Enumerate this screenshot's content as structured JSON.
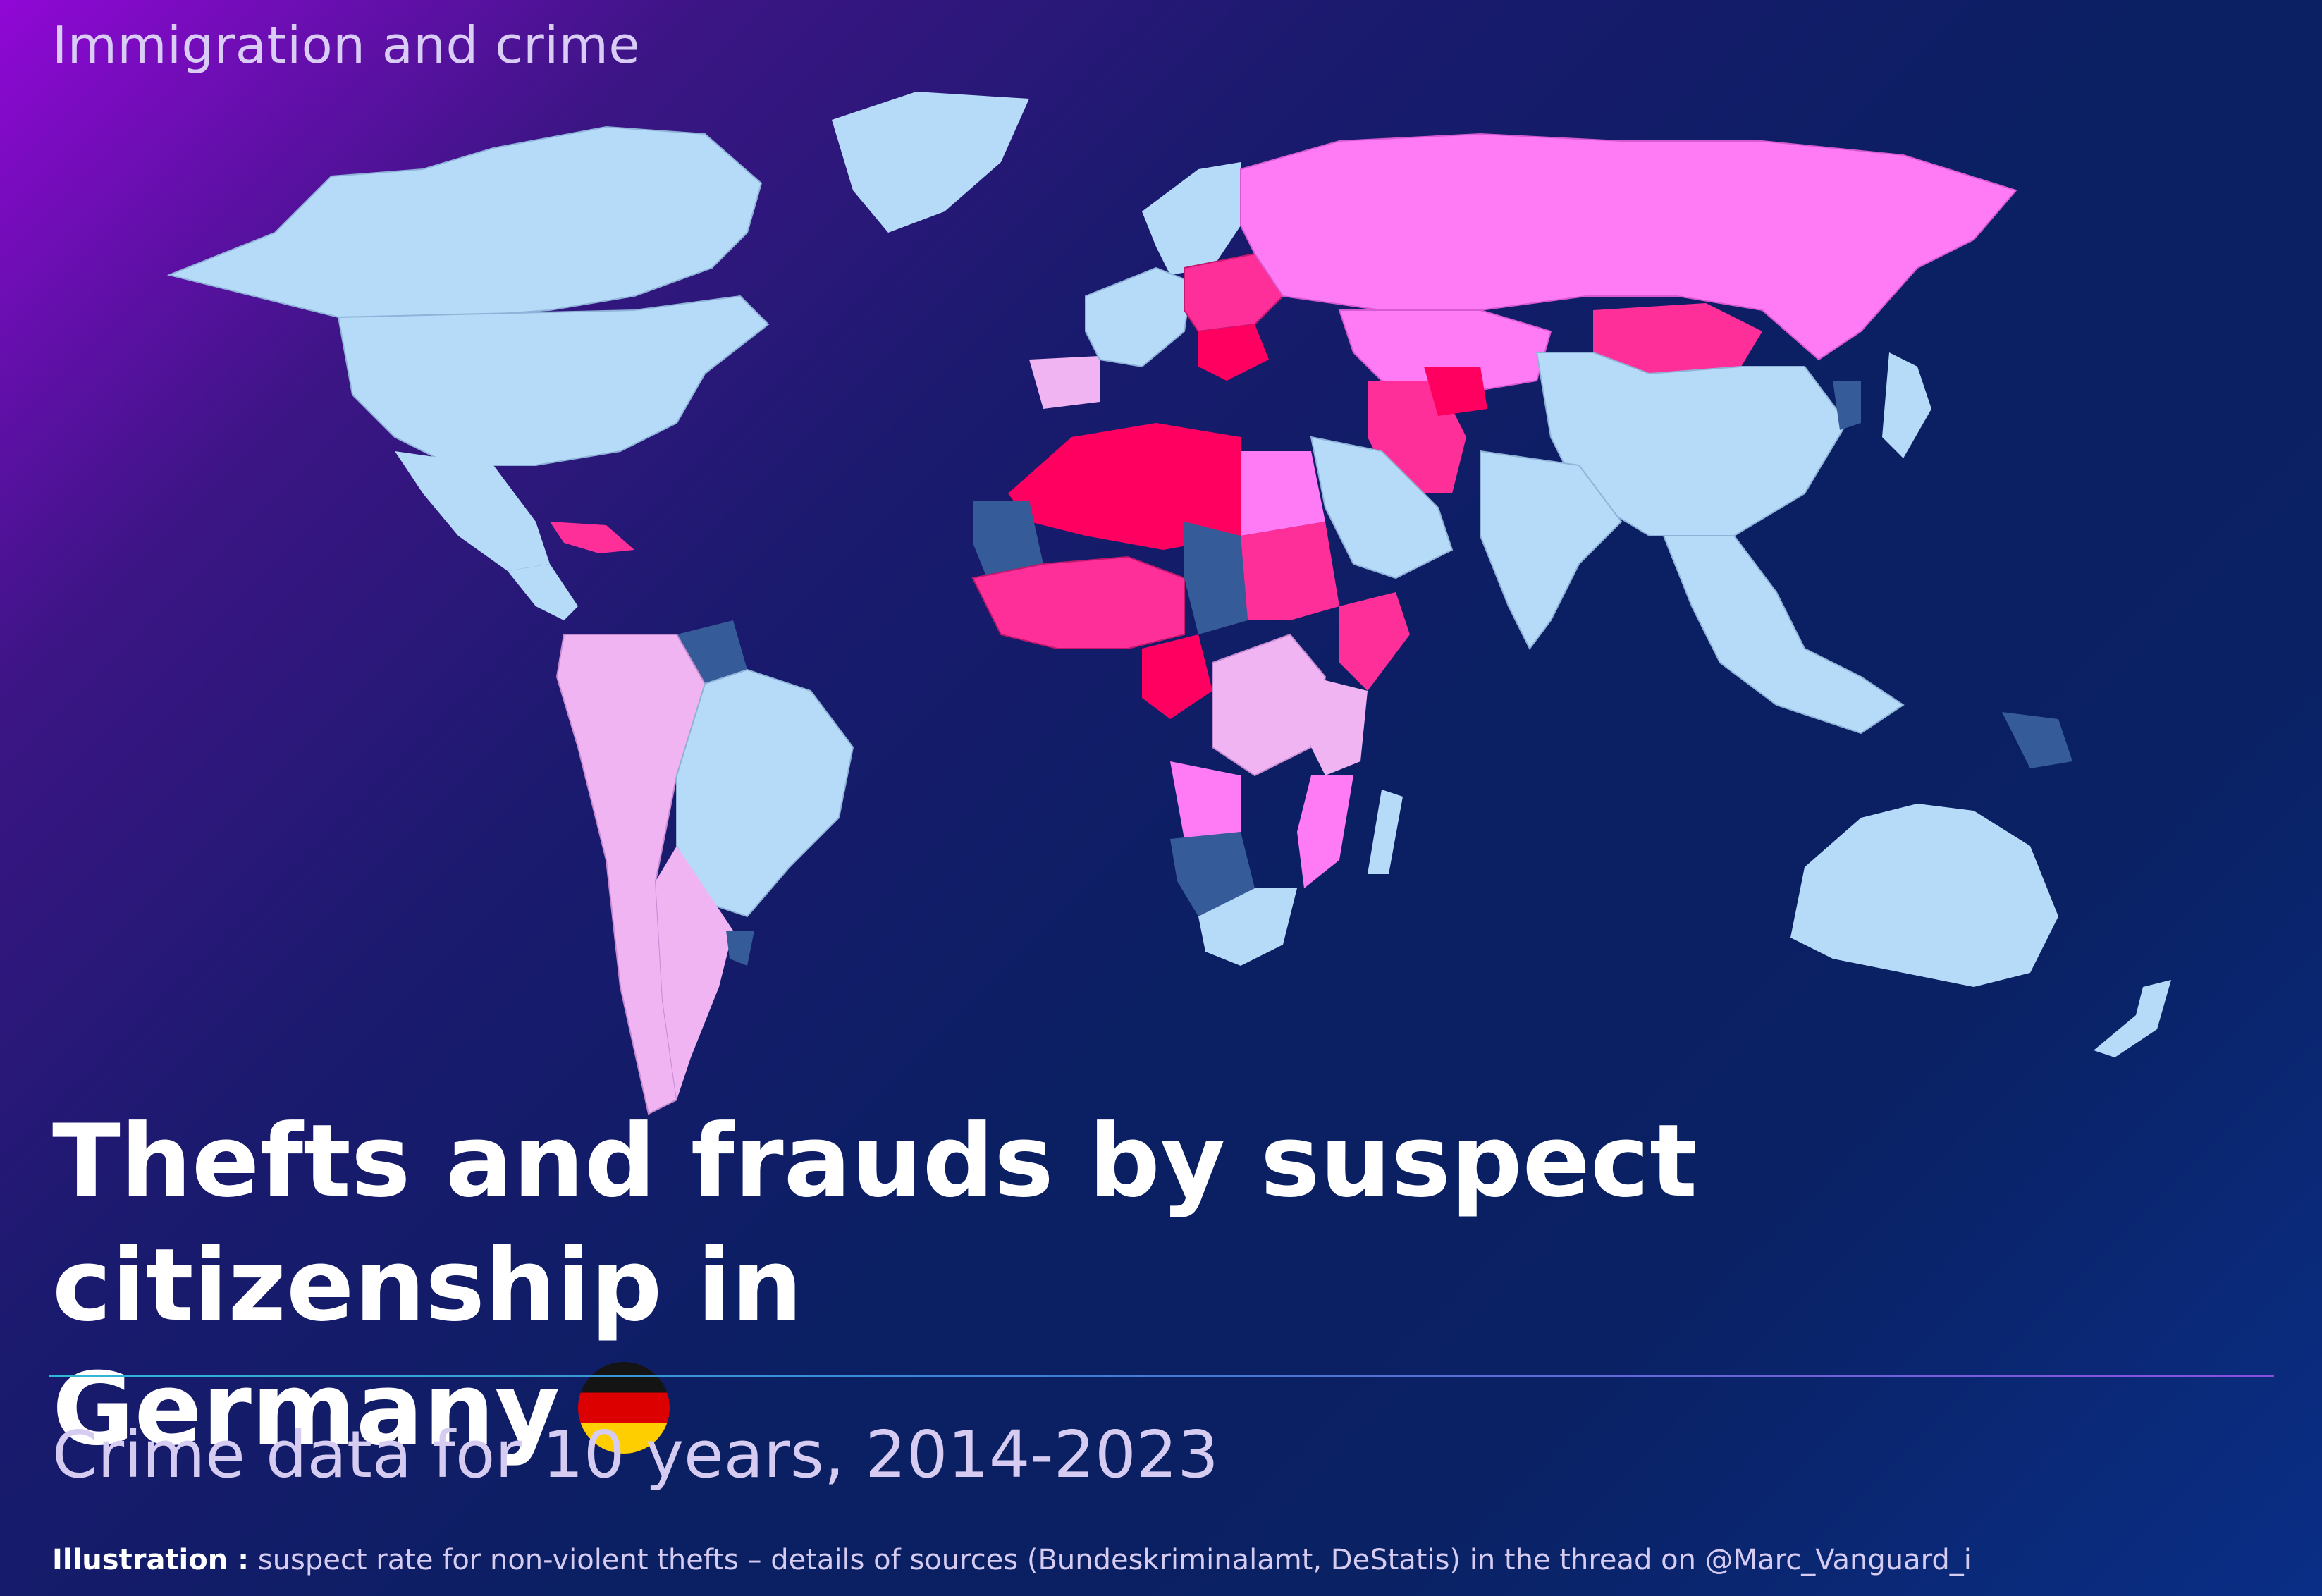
{
  "header": {
    "kicker": "Immigration and crime"
  },
  "title": {
    "line1": "Thefts and frauds by suspect citizenship in",
    "line2": "Germany"
  },
  "subtitle": "Crime data for 10 years, 2014-2023",
  "footer": {
    "label": "Illustration :",
    "text": "suspect rate for non-violent thefts – details of sources (Bundeskriminalamt, DeStatis) in the thread on @Marc_Vanguard_i"
  },
  "flag_icon": "germany-flag-icon",
  "map": {
    "colors": {
      "very_high": "#ff0060",
      "high": "#ff2f9a",
      "medium": "#ff7bf6",
      "low": "#f0b4f2",
      "very_low": "#b6dbf8",
      "no_data": "#355c98"
    },
    "regions": [
      {
        "name": "Canada",
        "level": "very_low"
      },
      {
        "name": "Greenland",
        "level": "very_low"
      },
      {
        "name": "United States",
        "level": "very_low"
      },
      {
        "name": "Mexico",
        "level": "very_low"
      },
      {
        "name": "Central America",
        "level": "very_low"
      },
      {
        "name": "Caribbean",
        "level": "high"
      },
      {
        "name": "Venezuela",
        "level": "no_data"
      },
      {
        "name": "Brazil",
        "level": "very_low"
      },
      {
        "name": "Andean countries",
        "level": "low"
      },
      {
        "name": "Argentina",
        "level": "low"
      },
      {
        "name": "Uruguay",
        "level": "no_data"
      },
      {
        "name": "Iberia",
        "level": "low"
      },
      {
        "name": "Western Europe",
        "level": "very_low"
      },
      {
        "name": "Scandinavia",
        "level": "very_low"
      },
      {
        "name": "Eastern Europe",
        "level": "high"
      },
      {
        "name": "Balkans",
        "level": "very_high"
      },
      {
        "name": "Russia",
        "level": "medium"
      },
      {
        "name": "Mongolia",
        "level": "high"
      },
      {
        "name": "Central Asia",
        "level": "medium"
      },
      {
        "name": "Iran",
        "level": "high"
      },
      {
        "name": "Afghanistan",
        "level": "very_high"
      },
      {
        "name": "Arabian Peninsula",
        "level": "very_low"
      },
      {
        "name": "China",
        "level": "very_low"
      },
      {
        "name": "India",
        "level": "very_low"
      },
      {
        "name": "Southeast Asia",
        "level": "very_low"
      },
      {
        "name": "Japan",
        "level": "very_low"
      },
      {
        "name": "Korea",
        "level": "no_data"
      },
      {
        "name": "Papua New Guinea",
        "level": "no_data"
      },
      {
        "name": "Australia",
        "level": "very_low"
      },
      {
        "name": "New Zealand",
        "level": "very_low"
      },
      {
        "name": "Algeria / Libya",
        "level": "very_high"
      },
      {
        "name": "Egypt",
        "level": "medium"
      },
      {
        "name": "Sudan",
        "level": "high"
      },
      {
        "name": "West Africa",
        "level": "high"
      },
      {
        "name": "Mauritania",
        "level": "no_data"
      },
      {
        "name": "Chad",
        "level": "no_data"
      },
      {
        "name": "Horn of Africa",
        "level": "high"
      },
      {
        "name": "Nigeria",
        "level": "very_high"
      },
      {
        "name": "Central Africa",
        "level": "low"
      },
      {
        "name": "East Africa",
        "level": "low"
      },
      {
        "name": "Angola",
        "level": "medium"
      },
      {
        "name": "Namibia / Botswana",
        "level": "no_data"
      },
      {
        "name": "South Africa",
        "level": "very_low"
      },
      {
        "name": "Mozambique",
        "level": "medium"
      },
      {
        "name": "Madagascar",
        "level": "very_low"
      }
    ]
  }
}
